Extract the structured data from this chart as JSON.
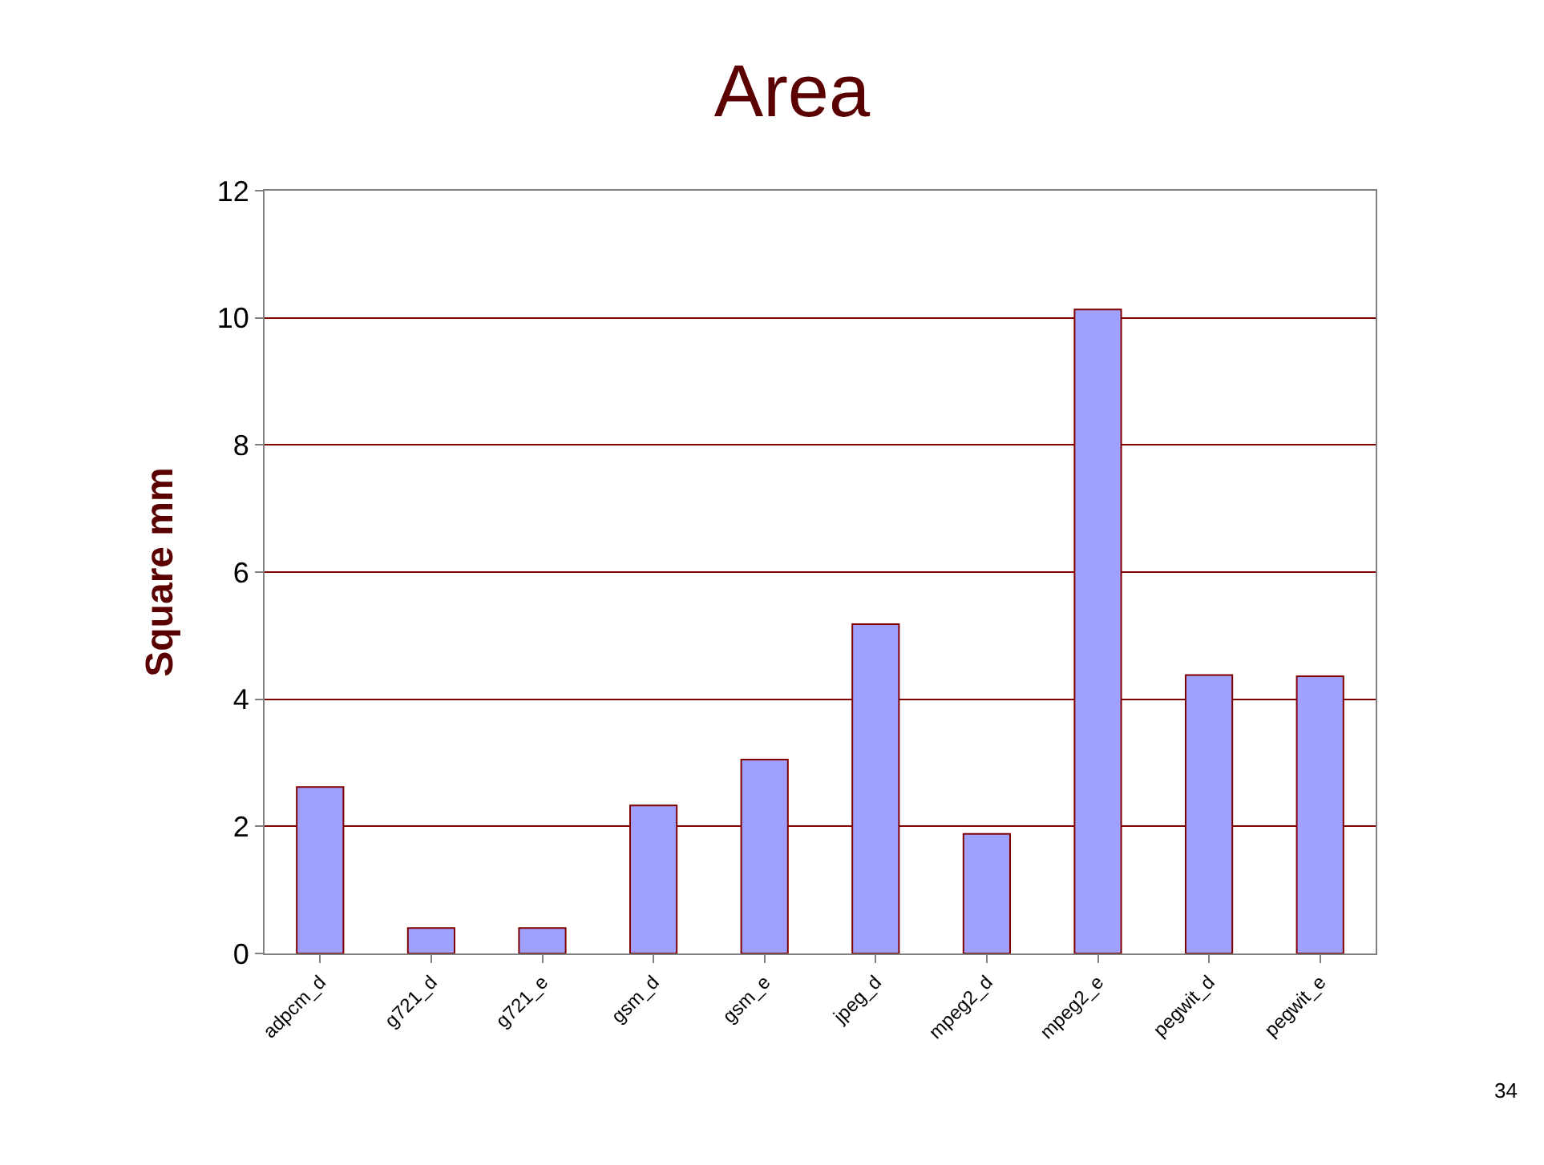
{
  "chart_data": {
    "type": "bar",
    "title": "Area",
    "ylabel": "Square mm",
    "categories": [
      "adpcm_d",
      "g721_d",
      "g721_e",
      "gsm_d",
      "gsm_e",
      "jpeg_d",
      "mpeg2_d",
      "mpeg2_e",
      "pegwit_d",
      "pegwit_e"
    ],
    "values": [
      2.62,
      0.4,
      0.4,
      2.33,
      3.05,
      5.18,
      1.88,
      10.13,
      4.38,
      4.36
    ],
    "color": "#a0a0ff",
    "ylim": [
      0,
      12
    ],
    "yticks": [
      0,
      2,
      4,
      6,
      8,
      10,
      12
    ],
    "grid": "y",
    "annotations": [
      "34"
    ]
  }
}
